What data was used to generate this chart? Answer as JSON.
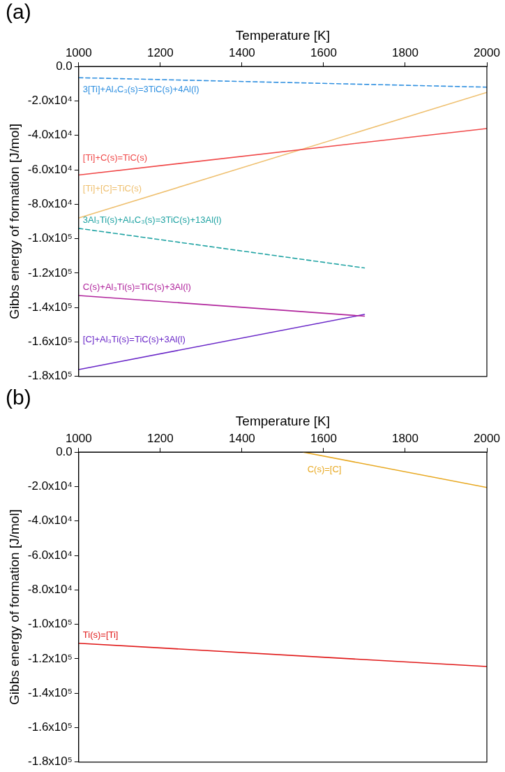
{
  "chart_data": [
    {
      "type": "line",
      "annotations": [
        "(a)"
      ],
      "xlabel": "Temperature [K]",
      "ylabel": "Gibbs energy of formation [J/mol]",
      "xlim": [
        1000,
        2000
      ],
      "xticks": [
        1000,
        1200,
        1400,
        1600,
        1800,
        2000
      ],
      "ylim": [
        -180000,
        0
      ],
      "yticks": [
        {
          "value": 0,
          "label": "0.0"
        },
        {
          "value": -20000,
          "label": "-2.0x10⁴"
        },
        {
          "value": -40000,
          "label": "-4.0x10⁴"
        },
        {
          "value": -60000,
          "label": "-6.0x10⁴"
        },
        {
          "value": -80000,
          "label": "-8.0x10⁴"
        },
        {
          "value": -100000,
          "label": "-1.0x10⁵"
        },
        {
          "value": -120000,
          "label": "-1.2x10⁵"
        },
        {
          "value": -140000,
          "label": "-1.4x10⁵"
        },
        {
          "value": -160000,
          "label": "-1.6x10⁵"
        },
        {
          "value": -180000,
          "label": "-1.8x10⁵"
        }
      ],
      "grid": false,
      "legend": false,
      "marker": "none",
      "series": [
        {
          "name": "3[Ti]+Al₄C₃(s)=3TiC(s)+4Al(l)",
          "color": "#2e8fe0",
          "line_style": "dashed",
          "x": [
            1000,
            2000
          ],
          "values": [
            -6500,
            -12000
          ]
        },
        {
          "name": "[Ti]+C(s)=TiC(s)",
          "color": "#f04848",
          "line_style": "solid",
          "x": [
            1000,
            2000
          ],
          "values": [
            -63000,
            -36000
          ]
        },
        {
          "name": "[Ti]+[C]=TiC(s)",
          "color": "#efc070",
          "line_style": "solid",
          "x": [
            1000,
            2000
          ],
          "values": [
            -88000,
            -15000
          ]
        },
        {
          "name": "3Al₃Ti(s)+Al₄C₃(s)=3TiC(s)+13Al(l)",
          "color": "#1fa3a3",
          "line_style": "dashed",
          "x": [
            1000,
            1700
          ],
          "values": [
            -94000,
            -117000
          ]
        },
        {
          "name": "C(s)+Al₃Ti(s)=TiC(s)+3Al(l)",
          "color": "#b0249c",
          "line_style": "solid",
          "x": [
            1000,
            1700
          ],
          "values": [
            -133000,
            -145000
          ]
        },
        {
          "name": "[C]+Al₃Ti(s)=TiC(s)+3Al(l)",
          "color": "#6a28c8",
          "line_style": "solid",
          "x": [
            1000,
            1700
          ],
          "values": [
            -176000,
            -144000
          ]
        }
      ]
    },
    {
      "type": "line",
      "annotations": [
        "(b)"
      ],
      "xlabel": "Temperature [K]",
      "ylabel": "Gibbs energy of formation [J/mol]",
      "xlim": [
        1000,
        2000
      ],
      "xticks": [
        1000,
        1200,
        1400,
        1600,
        1800,
        2000
      ],
      "ylim": [
        -180000,
        0
      ],
      "yticks": [
        {
          "value": 0,
          "label": "0.0"
        },
        {
          "value": -20000,
          "label": "-2.0x10⁴"
        },
        {
          "value": -40000,
          "label": "-4.0x10⁴"
        },
        {
          "value": -60000,
          "label": "-6.0x10⁴"
        },
        {
          "value": -80000,
          "label": "-8.0x10⁴"
        },
        {
          "value": -100000,
          "label": "-1.0x10⁵"
        },
        {
          "value": -120000,
          "label": "-1.2x10⁵"
        },
        {
          "value": -140000,
          "label": "-1.4x10⁵"
        },
        {
          "value": -160000,
          "label": "-1.6x10⁵"
        },
        {
          "value": -180000,
          "label": "-1.8x10⁵"
        }
      ],
      "grid": false,
      "legend": false,
      "marker": "none",
      "series": [
        {
          "name": "C(s)=[C]",
          "color": "#e8a820",
          "line_style": "solid",
          "x": [
            1550,
            2000
          ],
          "values": [
            0,
            -20500
          ]
        },
        {
          "name": "Ti(s)=[Ti]",
          "color": "#e01818",
          "line_style": "solid",
          "x": [
            1000,
            2000
          ],
          "values": [
            -111000,
            -124500
          ]
        }
      ]
    }
  ]
}
